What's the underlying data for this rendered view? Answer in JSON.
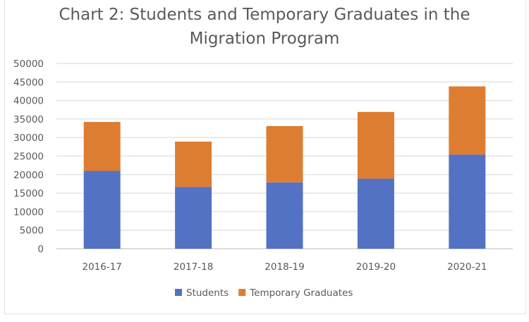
{
  "chart_data": {
    "type": "bar",
    "stacked": true,
    "title_lines": [
      "Chart 2: Students and Temporary Graduates in the",
      "Migration Program"
    ],
    "categories": [
      "2016-17",
      "2017-18",
      "2018-19",
      "2019-20",
      "2020-21"
    ],
    "series": [
      {
        "name": "Students",
        "color": "#5472c4",
        "values": [
          21000,
          16700,
          17900,
          18900,
          25400
        ]
      },
      {
        "name": "Temporary Graduates",
        "color": "#dd7d31",
        "values": [
          13200,
          12200,
          15200,
          18000,
          18400
        ]
      }
    ],
    "ylim": [
      0,
      50000
    ],
    "yticks": [
      0,
      5000,
      10000,
      15000,
      20000,
      25000,
      30000,
      35000,
      40000,
      45000,
      50000
    ],
    "grid": true,
    "legend": "bottom",
    "xlabel": "",
    "ylabel": ""
  }
}
